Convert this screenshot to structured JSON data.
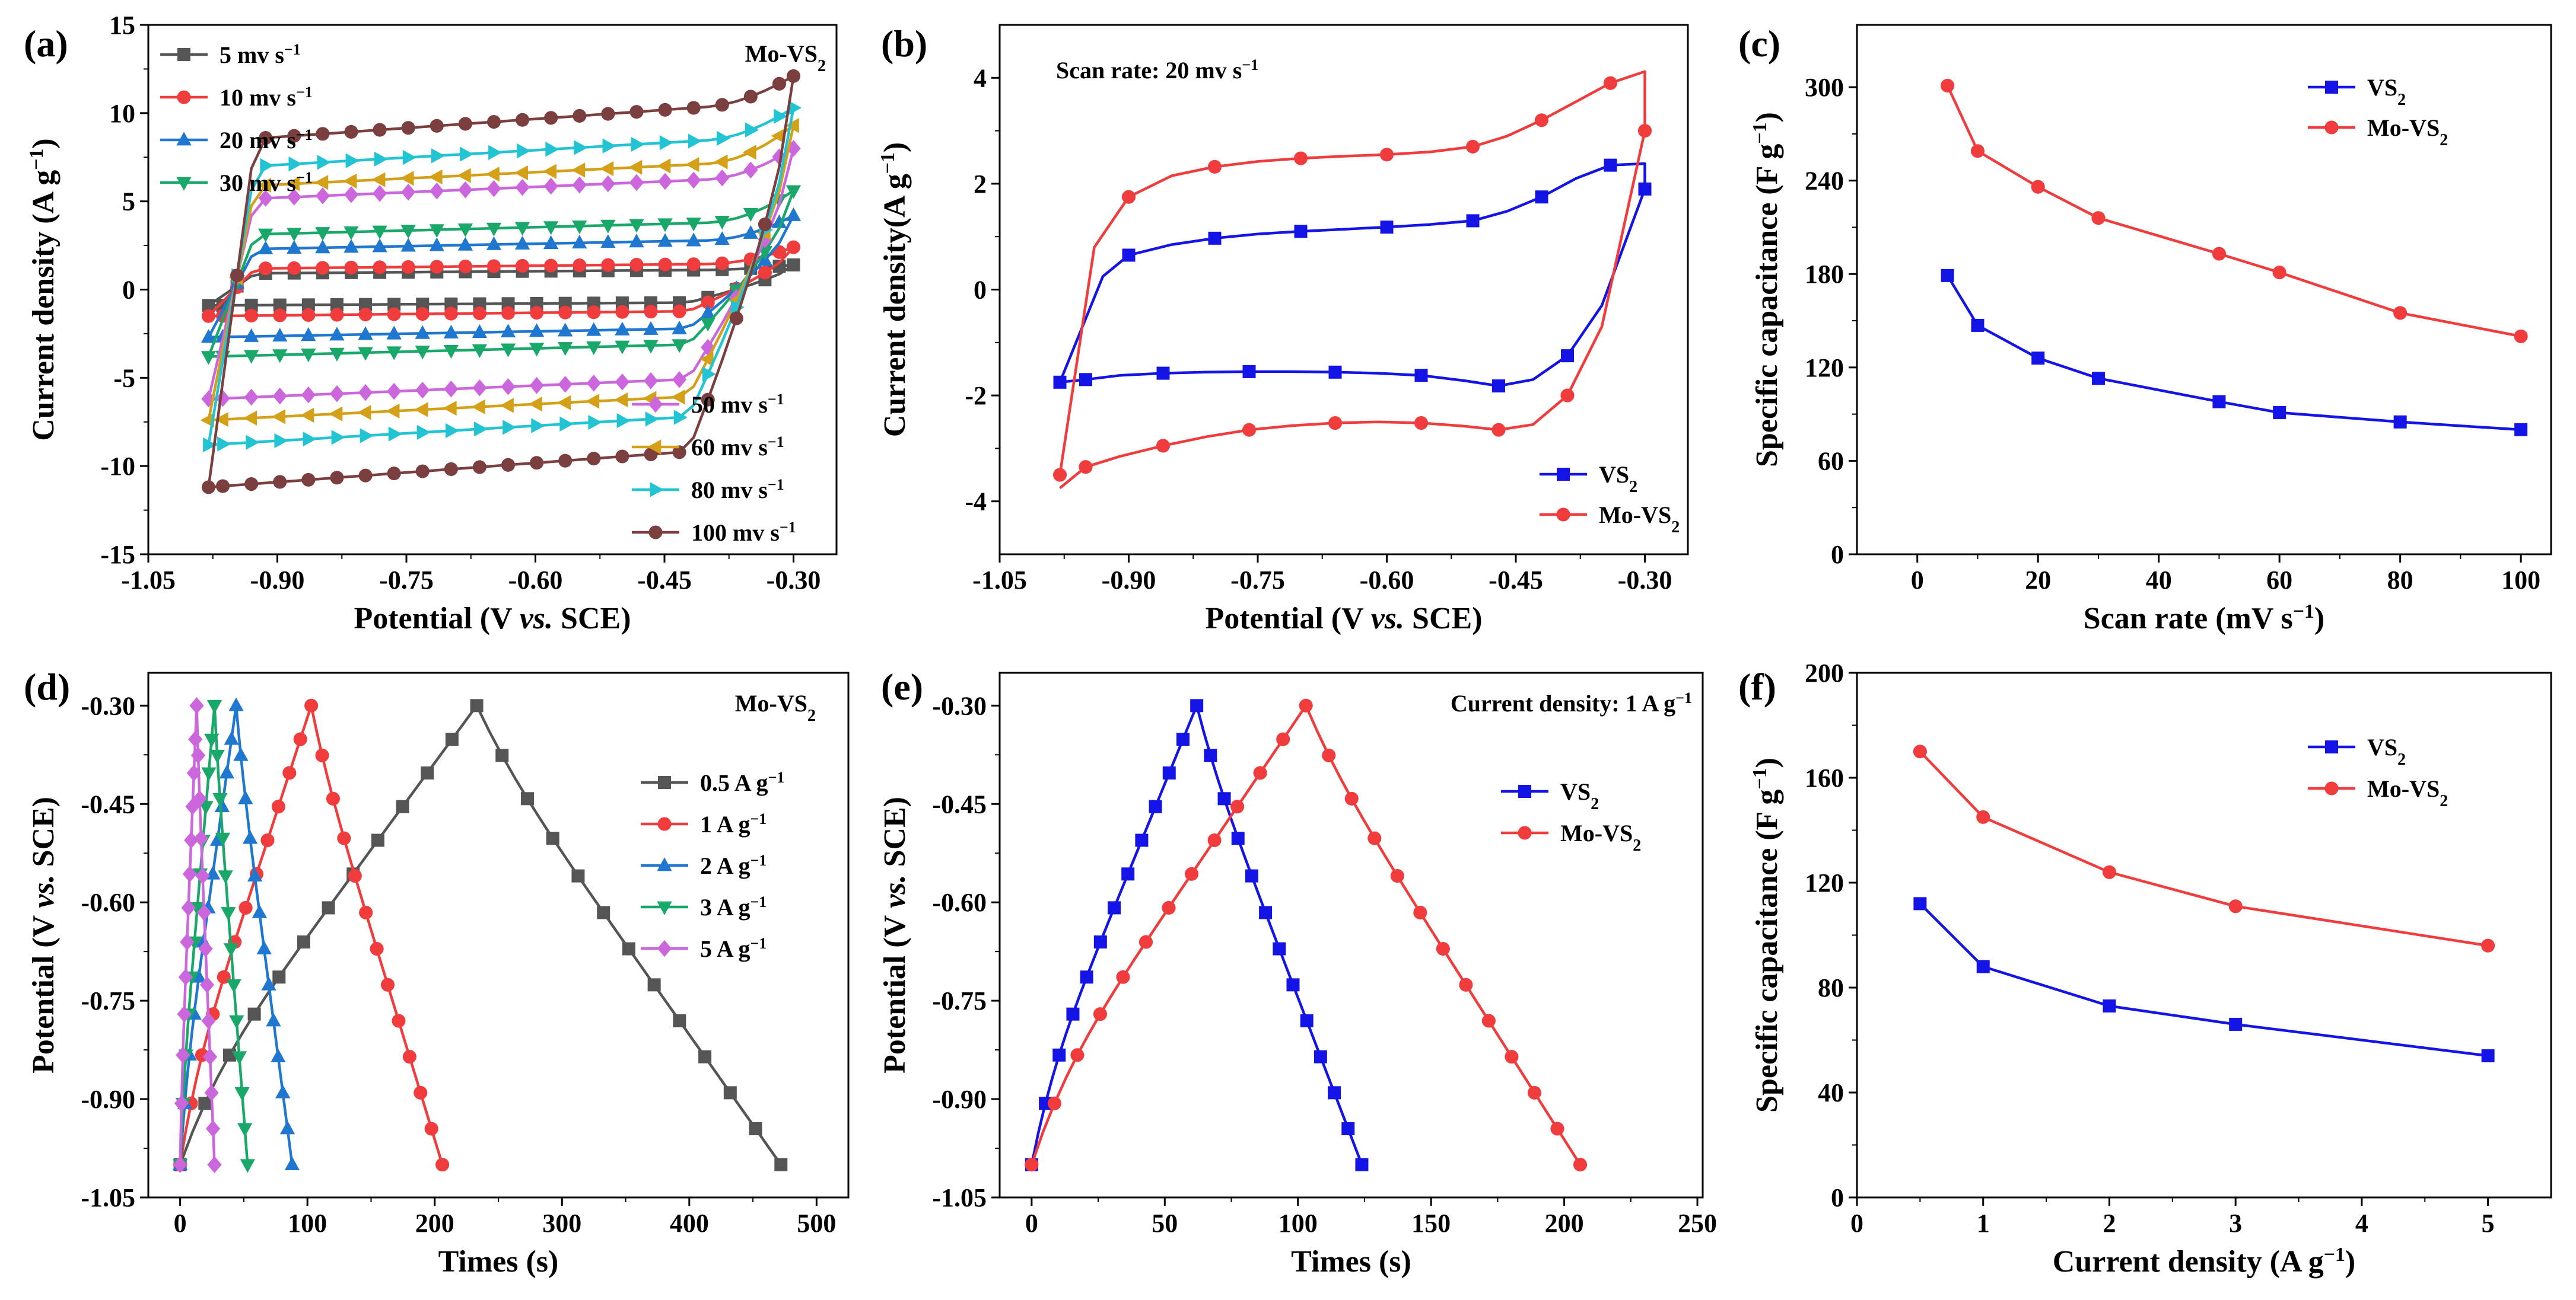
{
  "chart_data": [
    {
      "panel_label": "(a)",
      "type": "line",
      "xlabel": "Potential (V vs. SCE)",
      "ylabel": "Current density (A g−1)",
      "annotation": "Mo-VS2",
      "xlim": [
        -1.05,
        -0.25
      ],
      "ylim": [
        -15,
        15
      ],
      "xticks": [
        -1.05,
        -0.9,
        -0.75,
        -0.6,
        -0.45,
        -0.3
      ],
      "xtick_labels": [
        "-1.05",
        "-0.90",
        "-0.75",
        "-0.60",
        "-0.45",
        "-0.30"
      ],
      "yticks": [
        -15,
        -10,
        -5,
        0,
        5,
        10,
        15
      ],
      "ytick_labels": [
        "-15",
        "-10",
        "-5",
        "0",
        "5",
        "10",
        "15"
      ],
      "legend_blocks": [
        {
          "position": "top-left",
          "series": [
            0,
            1,
            2,
            3
          ]
        },
        {
          "position": "bottom-right",
          "series": [
            4,
            5,
            6,
            7
          ]
        }
      ],
      "series": [
        {
          "name": "5 mv s−1",
          "color": "#555555",
          "marker": "square",
          "anodic": 1.0,
          "cathodic": -0.9,
          "peak": 1.4
        },
        {
          "name": "10 mv s−1",
          "color": "#f03c3c",
          "marker": "circle",
          "anodic": 1.3,
          "cathodic": -1.5,
          "peak": 2.4
        },
        {
          "name": "20 mv s−1",
          "color": "#1f77d0",
          "marker": "triangle-up",
          "anodic": 2.5,
          "cathodic": -2.7,
          "peak": 4.2
        },
        {
          "name": "30 mv s−1",
          "color": "#1aa86a",
          "marker": "triangle-down",
          "anodic": 3.4,
          "cathodic": -3.8,
          "peak": 5.6
        },
        {
          "name": "50 mv s−1",
          "color": "#cc66dd",
          "marker": "diamond",
          "anodic": 5.6,
          "cathodic": -6.2,
          "peak": 8.0
        },
        {
          "name": "60 mv s−1",
          "color": "#d4a017",
          "marker": "triangle-left",
          "anodic": 6.4,
          "cathodic": -7.4,
          "peak": 9.3
        },
        {
          "name": "80 mv s−1",
          "color": "#22c4d4",
          "marker": "triangle-right",
          "anodic": 7.6,
          "cathodic": -8.8,
          "peak": 10.3
        },
        {
          "name": "100 mv s−1",
          "color": "#7b3f3f",
          "marker": "circle",
          "anodic": 9.3,
          "cathodic": -11.2,
          "peak": 12.1
        }
      ]
    },
    {
      "panel_label": "(b)",
      "type": "line",
      "xlabel": "Potential (V vs. SCE)",
      "ylabel": "Current density(A g−1)",
      "annotation": "Scan rate: 20 mv s−1",
      "xlim": [
        -1.05,
        -0.25
      ],
      "ylim": [
        -5,
        5
      ],
      "xticks": [
        -1.05,
        -0.9,
        -0.75,
        -0.6,
        -0.45,
        -0.3
      ],
      "xtick_labels": [
        "-1.05",
        "-0.90",
        "-0.75",
        "-0.60",
        "-0.45",
        "-0.30"
      ],
      "yticks": [
        -4,
        -2,
        0,
        2,
        4
      ],
      "ytick_labels": [
        "-4",
        "-2",
        "0",
        "2",
        "4"
      ],
      "legend_position": "bottom-right",
      "series": [
        {
          "name": "VS2",
          "color": "#1414e6",
          "marker": "square",
          "x": [
            -0.98,
            -0.93,
            -0.9,
            -0.85,
            -0.8,
            -0.75,
            -0.7,
            -0.65,
            -0.6,
            -0.55,
            -0.5,
            -0.46,
            -0.42,
            -0.38,
            -0.34,
            -0.3,
            -0.3,
            -0.35,
            -0.39,
            -0.43,
            -0.47,
            -0.51,
            -0.56,
            -0.61,
            -0.66,
            -0.71,
            -0.76,
            -0.81,
            -0.86,
            -0.91,
            -0.95,
            -0.98
          ],
          "y": [
            -1.75,
            0.25,
            0.65,
            0.85,
            0.97,
            1.05,
            1.1,
            1.14,
            1.18,
            1.23,
            1.3,
            1.48,
            1.75,
            2.1,
            2.35,
            2.38,
            1.9,
            -0.3,
            -1.25,
            -1.7,
            -1.82,
            -1.72,
            -1.62,
            -1.58,
            -1.56,
            -1.55,
            -1.55,
            -1.56,
            -1.58,
            -1.62,
            -1.7,
            -1.75
          ]
        },
        {
          "name": "Mo-VS2",
          "color": "#f03c3c",
          "marker": "circle",
          "x": [
            -0.98,
            -0.94,
            -0.9,
            -0.85,
            -0.8,
            -0.75,
            -0.7,
            -0.65,
            -0.6,
            -0.55,
            -0.5,
            -0.46,
            -0.42,
            -0.38,
            -0.34,
            -0.3,
            -0.3,
            -0.35,
            -0.39,
            -0.43,
            -0.47,
            -0.51,
            -0.56,
            -0.61,
            -0.66,
            -0.71,
            -0.76,
            -0.81,
            -0.86,
            -0.91,
            -0.95,
            -0.98
          ],
          "y": [
            -3.5,
            0.8,
            1.75,
            2.15,
            2.32,
            2.42,
            2.48,
            2.52,
            2.55,
            2.6,
            2.7,
            2.9,
            3.2,
            3.55,
            3.9,
            4.12,
            3.0,
            -0.7,
            -2.0,
            -2.55,
            -2.65,
            -2.58,
            -2.52,
            -2.5,
            -2.52,
            -2.57,
            -2.65,
            -2.78,
            -2.95,
            -3.15,
            -3.35,
            -3.75
          ]
        }
      ]
    },
    {
      "panel_label": "(c)",
      "type": "line",
      "xlabel": "Scan rate (mV s−1)",
      "ylabel": "Specific capacitance (F g−1)",
      "xlim": [
        -10,
        105
      ],
      "ylim": [
        0,
        340
      ],
      "xticks": [
        0,
        20,
        40,
        60,
        80,
        100
      ],
      "xtick_labels": [
        "0",
        "20",
        "40",
        "60",
        "80",
        "100"
      ],
      "yticks": [
        0,
        60,
        120,
        180,
        240,
        300
      ],
      "ytick_labels": [
        "0",
        "60",
        "120",
        "180",
        "240",
        "300"
      ],
      "legend_position": "top-right",
      "series": [
        {
          "name": "VS2",
          "color": "#1414e6",
          "marker": "square",
          "x": [
            5,
            10,
            20,
            30,
            50,
            60,
            80,
            100
          ],
          "y": [
            179,
            147,
            126,
            113,
            98,
            91,
            85,
            80
          ]
        },
        {
          "name": "Mo-VS2",
          "color": "#f03c3c",
          "marker": "circle",
          "x": [
            5,
            10,
            20,
            30,
            50,
            60,
            80,
            100
          ],
          "y": [
            301,
            259,
            236,
            216,
            193,
            181,
            155,
            140
          ]
        }
      ]
    },
    {
      "panel_label": "(d)",
      "type": "line",
      "xlabel": "Times (s)",
      "ylabel": "Potential (V vs. SCE)",
      "annotation": "Mo-VS2",
      "xlim": [
        -25,
        525
      ],
      "ylim": [
        -1.05,
        -0.25
      ],
      "xticks": [
        0,
        100,
        200,
        300,
        400,
        500
      ],
      "xtick_labels": [
        "0",
        "100",
        "200",
        "300",
        "400",
        "500"
      ],
      "yticks": [
        -1.05,
        -0.9,
        -0.75,
        -0.6,
        -0.45,
        -0.3
      ],
      "ytick_labels": [
        "-1.05",
        "-0.90",
        "-0.75",
        "-0.60",
        "-0.45",
        "-0.30"
      ],
      "legend_position": "center-right",
      "series": [
        {
          "name": "0.5 A g−1",
          "color": "#555555",
          "marker": "square",
          "charge_time": 233,
          "total_time": 472
        },
        {
          "name": "1 A g−1",
          "color": "#f03c3c",
          "marker": "circle",
          "charge_time": 103,
          "total_time": 206
        },
        {
          "name": "2 A g−1",
          "color": "#1f77d0",
          "marker": "triangle-up",
          "charge_time": 44,
          "total_time": 88
        },
        {
          "name": "3 A g−1",
          "color": "#1aa86a",
          "marker": "triangle-down",
          "charge_time": 27,
          "total_time": 53
        },
        {
          "name": "5 A g−1",
          "color": "#cc66dd",
          "marker": "diamond",
          "charge_time": 13,
          "total_time": 27
        }
      ]
    },
    {
      "panel_label": "(e)",
      "type": "line",
      "xlabel": "Times (s)",
      "ylabel": "Potential (V vs. SCE)",
      "annotation": "Current density: 1 A g−1",
      "xlim": [
        -12,
        252
      ],
      "ylim": [
        -1.05,
        -0.25
      ],
      "xticks": [
        0,
        50,
        100,
        150,
        200,
        250
      ],
      "xtick_labels": [
        "0",
        "50",
        "100",
        "150",
        "200",
        "250"
      ],
      "yticks": [
        -1.05,
        -0.9,
        -0.75,
        -0.6,
        -0.45,
        -0.3
      ],
      "ytick_labels": [
        "-1.05",
        "-0.90",
        "-0.75",
        "-0.60",
        "-0.45",
        "-0.30"
      ],
      "legend_position": "top-right",
      "series": [
        {
          "name": "VS2",
          "color": "#1414e6",
          "marker": "square",
          "charge_time": 62,
          "total_time": 124
        },
        {
          "name": "Mo-VS2",
          "color": "#f03c3c",
          "marker": "circle",
          "charge_time": 103,
          "total_time": 206
        }
      ]
    },
    {
      "panel_label": "(f)",
      "type": "line",
      "xlabel": "Current density (A g−1)",
      "ylabel": "Specific capacitance (F g−1)",
      "xlim": [
        0,
        5.5
      ],
      "ylim": [
        0,
        200
      ],
      "xticks": [
        0,
        1,
        2,
        3,
        4,
        5
      ],
      "xtick_labels": [
        "0",
        "1",
        "2",
        "3",
        "4",
        "5"
      ],
      "yticks": [
        0,
        40,
        80,
        120,
        160,
        200
      ],
      "ytick_labels": [
        "0",
        "40",
        "80",
        "120",
        "160",
        "200"
      ],
      "legend_position": "top-right",
      "series": [
        {
          "name": "VS2",
          "color": "#1414e6",
          "marker": "square",
          "x": [
            0.5,
            1,
            2,
            3,
            5
          ],
          "y": [
            112,
            88,
            73,
            66,
            54
          ]
        },
        {
          "name": "Mo-VS2",
          "color": "#f03c3c",
          "marker": "circle",
          "x": [
            0.5,
            1,
            2,
            3,
            5
          ],
          "y": [
            170,
            145,
            124,
            111,
            96
          ]
        }
      ]
    }
  ]
}
